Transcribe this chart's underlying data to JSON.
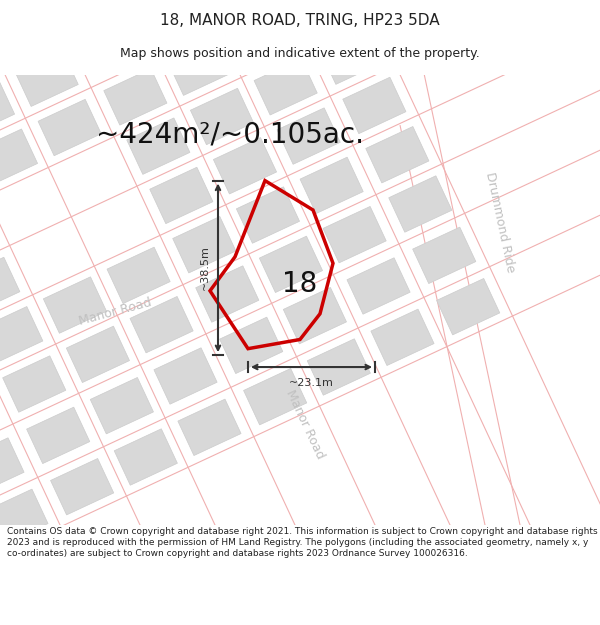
{
  "title_line1": "18, MANOR ROAD, TRING, HP23 5DA",
  "title_line2": "Map shows position and indicative extent of the property.",
  "area_text": "~424m²/~0.105ac.",
  "label_18": "18",
  "dim_vertical": "~38.5m",
  "dim_horizontal": "~23.1m",
  "road_label_manor_left": "Manor Road",
  "road_label_manor_diag": "Manor Road",
  "road_label_drummond": "Drummond Ride",
  "footer_text": "Contains OS data © Crown copyright and database right 2021. This information is subject to Crown copyright and database rights 2023 and is reproduced with the permission of HM Land Registry. The polygons (including the associated geometry, namely x, y co-ordinates) are subject to Crown copyright and database rights 2023 Ordnance Survey 100026316.",
  "bg_color": "#ffffff",
  "map_bg": "#f8f6f6",
  "road_line_color": "#f0b0b0",
  "building_color": "#d8d8d8",
  "building_edge": "#cccccc",
  "plot_color": "#cc0000",
  "dim_color": "#333333",
  "text_color": "#222222",
  "road_text_color": "#c0c0c0",
  "title_fs": 11,
  "subtitle_fs": 9,
  "area_fs": 20,
  "label_fs": 20,
  "dim_fs": 8,
  "road_fs": 9,
  "footer_fs": 6.5
}
